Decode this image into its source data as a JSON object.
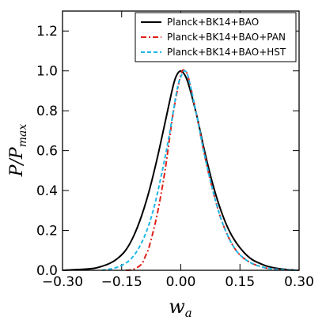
{
  "chart_data": {
    "type": "line",
    "title": "",
    "xlabel_main": "w",
    "xlabel_sub": "a",
    "ylabel_main": "P/P",
    "ylabel_sub": "max",
    "xlim": [
      -0.3,
      0.3
    ],
    "ylim": [
      0,
      1.3
    ],
    "x_ticks": [
      -0.3,
      -0.15,
      0.0,
      0.15,
      0.3
    ],
    "x_tick_labels": [
      "−0.30",
      "−0.15",
      "0.00",
      "0.15",
      "0.30"
    ],
    "y_ticks": [
      0.0,
      0.2,
      0.4,
      0.6,
      0.8,
      1.0,
      1.2
    ],
    "y_tick_labels": [
      "0.0",
      "0.2",
      "0.4",
      "0.6",
      "0.8",
      "1.0",
      "1.2"
    ],
    "grid": false,
    "legend_position": "top-right",
    "series": [
      {
        "name": "Planck+BK14+BAO",
        "color": "#000000",
        "dash": "solid",
        "x": [
          -0.3,
          -0.25,
          -0.22,
          -0.2,
          -0.18,
          -0.16,
          -0.14,
          -0.12,
          -0.1,
          -0.08,
          -0.06,
          -0.04,
          -0.02,
          -0.01,
          0.0,
          0.01,
          0.02,
          0.04,
          0.06,
          0.08,
          0.1,
          0.12,
          0.14,
          0.16,
          0.18,
          0.2,
          0.22,
          0.25,
          0.28,
          0.3
        ],
        "y": [
          0.0,
          0.005,
          0.01,
          0.02,
          0.035,
          0.06,
          0.1,
          0.17,
          0.27,
          0.4,
          0.56,
          0.74,
          0.92,
          0.98,
          1.0,
          0.98,
          0.93,
          0.78,
          0.6,
          0.44,
          0.31,
          0.21,
          0.14,
          0.09,
          0.055,
          0.035,
          0.02,
          0.008,
          0.002,
          0.0
        ]
      },
      {
        "name": "Planck+BK14+BAO+PAN",
        "color": "#e0201b",
        "dash": "dashdot",
        "x": [
          -0.14,
          -0.12,
          -0.1,
          -0.09,
          -0.08,
          -0.06,
          -0.04,
          -0.02,
          0.0,
          0.01,
          0.02,
          0.04,
          0.06,
          0.08,
          0.1,
          0.12,
          0.14,
          0.16,
          0.18,
          0.2,
          0.22,
          0.25,
          0.28,
          0.3
        ],
        "y": [
          0.0,
          0.005,
          0.03,
          0.07,
          0.12,
          0.28,
          0.5,
          0.78,
          0.98,
          1.0,
          0.96,
          0.78,
          0.58,
          0.41,
          0.27,
          0.17,
          0.1,
          0.06,
          0.035,
          0.02,
          0.01,
          0.004,
          0.001,
          0.0
        ]
      },
      {
        "name": "Planck+BK14+BAO+HST",
        "color": "#1fb7e6",
        "dash": "dashed",
        "x": [
          -0.2,
          -0.17,
          -0.15,
          -0.13,
          -0.11,
          -0.09,
          -0.07,
          -0.05,
          -0.03,
          -0.01,
          0.0,
          0.01,
          0.02,
          0.04,
          0.06,
          0.08,
          0.1,
          0.12,
          0.14,
          0.16,
          0.18,
          0.2,
          0.22,
          0.25,
          0.28,
          0.3
        ],
        "y": [
          0.0,
          0.01,
          0.025,
          0.05,
          0.1,
          0.18,
          0.3,
          0.47,
          0.67,
          0.9,
          0.97,
          1.0,
          0.96,
          0.78,
          0.58,
          0.41,
          0.27,
          0.17,
          0.1,
          0.06,
          0.035,
          0.02,
          0.01,
          0.004,
          0.001,
          0.0
        ]
      }
    ]
  }
}
